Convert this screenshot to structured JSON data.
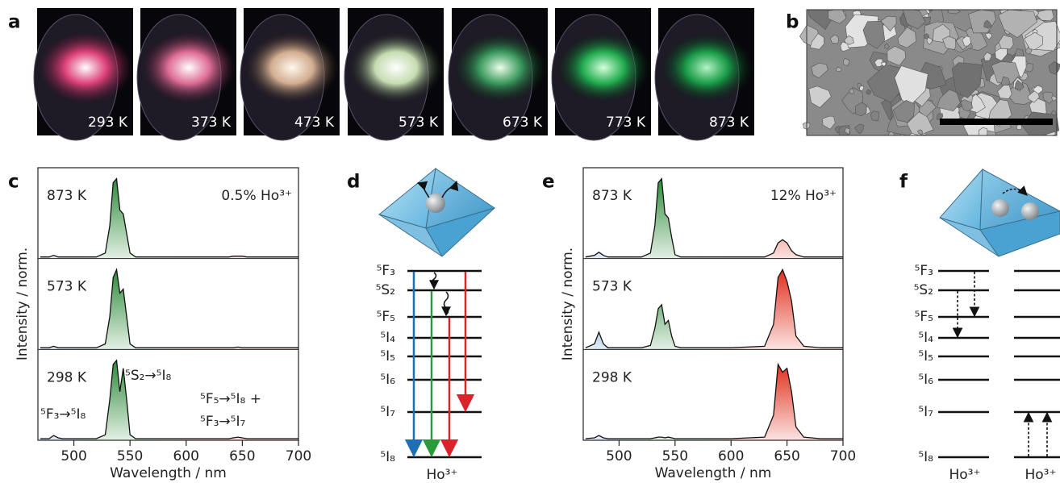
{
  "panel_labels": [
    "a",
    "b",
    "c",
    "d",
    "e",
    "f"
  ],
  "panel_a": {
    "temperatures": [
      "293 K",
      "373 K",
      "473 K",
      "573 K",
      "673 K",
      "773 K",
      "873 K"
    ]
  },
  "chart_data": [
    {
      "type": "line",
      "x_label": "Wavelength / nm",
      "y_label": "Intensity / norm.",
      "annotation": "0.5% Ho³⁺",
      "transitions": [
        "⁵S₂→⁵I₈",
        "⁵F₃→⁵I₈",
        "⁵F₅→⁵I₈ +",
        "⁵F₃→⁵I₇"
      ],
      "x": [
        470,
        478,
        482,
        486,
        490,
        500,
        520,
        528,
        532,
        535,
        538,
        541,
        544,
        547,
        550,
        555,
        570,
        600,
        630,
        638,
        642,
        646,
        650,
        654,
        658,
        665,
        680,
        700
      ],
      "xlim": [
        468,
        700
      ],
      "xticks": [
        500,
        550,
        600,
        650,
        700
      ],
      "ylim": [
        0,
        1.1
      ],
      "series": [
        {
          "name": "873 K",
          "color": "#111111",
          "values": [
            0,
            0,
            0.02,
            0,
            0,
            0,
            0,
            0.05,
            0.4,
            0.95,
            1.0,
            0.6,
            0.55,
            0.3,
            0.05,
            0,
            0,
            0,
            0,
            0,
            0.01,
            0.01,
            0.01,
            0,
            0,
            0,
            0,
            0
          ]
        },
        {
          "name": "573 K",
          "color": "#111111",
          "values": [
            0,
            0,
            0.02,
            0,
            0,
            0,
            0,
            0.05,
            0.4,
            0.9,
            1.0,
            0.7,
            0.75,
            0.4,
            0.05,
            0,
            0,
            0,
            0,
            0,
            0,
            0.01,
            0,
            0,
            0,
            0,
            0,
            0
          ]
        },
        {
          "name": "298 K",
          "color": "#111111",
          "values": [
            0,
            0,
            0.04,
            0.01,
            0,
            0,
            0,
            0.05,
            0.5,
            0.95,
            1.0,
            0.6,
            0.9,
            0.5,
            0.05,
            0,
            0,
            0,
            0,
            0,
            0.01,
            0.02,
            0.01,
            0,
            0,
            0,
            0,
            0
          ]
        }
      ]
    },
    {
      "type": "line",
      "x_label": "Wavelength / nm",
      "y_label": "Intensity / norm.",
      "annotation": "12% Ho³⁺",
      "x": [
        470,
        478,
        482,
        486,
        490,
        500,
        520,
        528,
        532,
        535,
        538,
        541,
        544,
        547,
        550,
        555,
        570,
        600,
        630,
        638,
        642,
        646,
        650,
        654,
        658,
        665,
        680,
        700
      ],
      "xlim": [
        468,
        700
      ],
      "xticks": [
        500,
        550,
        600,
        650,
        700
      ],
      "ylim": [
        0,
        1.1
      ],
      "series": [
        {
          "name": "873 K",
          "color": "#111111",
          "values": [
            0,
            0.02,
            0.06,
            0.02,
            0,
            0,
            0,
            0.05,
            0.4,
            0.95,
            1.0,
            0.55,
            0.5,
            0.25,
            0.03,
            0,
            0,
            0,
            0,
            0.05,
            0.18,
            0.22,
            0.18,
            0.08,
            0.03,
            0,
            0,
            0
          ]
        },
        {
          "name": "573 K",
          "color": "#111111",
          "values": [
            0,
            0.05,
            0.2,
            0.05,
            0,
            0,
            0,
            0.03,
            0.25,
            0.5,
            0.55,
            0.3,
            0.35,
            0.15,
            0.02,
            0,
            0,
            0,
            0.02,
            0.3,
            0.9,
            1.0,
            0.85,
            0.6,
            0.15,
            0.02,
            0,
            0
          ]
        },
        {
          "name": "298 K",
          "color": "#111111",
          "values": [
            0,
            0.01,
            0.04,
            0.01,
            0,
            0,
            0,
            0,
            0.01,
            0.02,
            0.02,
            0.01,
            0.02,
            0.01,
            0,
            0,
            0,
            0,
            0.02,
            0.3,
            0.95,
            0.85,
            0.9,
            0.6,
            0.15,
            0.02,
            0,
            0
          ]
        }
      ]
    }
  ],
  "panel_d": {
    "levels": [
      "⁵F₃",
      "⁵S₂",
      "⁵F₅",
      "⁵I₄",
      "⁵I₅",
      "⁵I₆",
      "⁵I₇",
      "⁵I₈"
    ],
    "ion": "Ho³⁺"
  },
  "panel_f": {
    "levels": [
      "⁵F₃",
      "⁵S₂",
      "⁵F₅",
      "⁵I₄",
      "⁵I₅",
      "⁵I₆",
      "⁵I₇",
      "⁵I₈"
    ],
    "ions": [
      "Ho³⁺",
      "Ho³⁺"
    ]
  }
}
